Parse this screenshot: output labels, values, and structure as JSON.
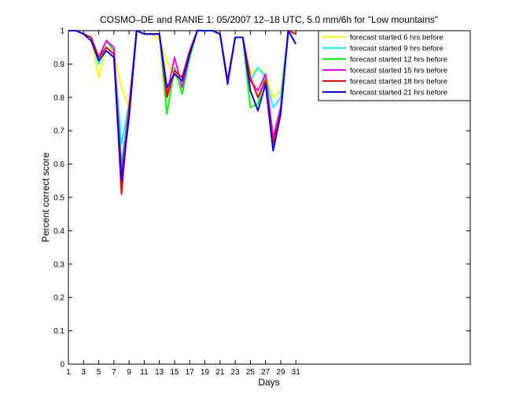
{
  "chart_data": {
    "type": "line",
    "title": "COSMO–DE and RANIE 1: 05/2007 12–18 UTC, 5.0 mm/6h for \"Low mountains\"",
    "xlabel": "Days",
    "ylabel": "Percent correct score",
    "xlim": [
      1,
      54
    ],
    "ylim": [
      0,
      1
    ],
    "x_ticks": [
      1,
      3,
      5,
      7,
      9,
      11,
      13,
      15,
      17,
      19,
      21,
      23,
      25,
      27,
      29,
      31
    ],
    "y_ticks": [
      0,
      0.1,
      0.2,
      0.3,
      0.4,
      0.5,
      0.6,
      0.7,
      0.8,
      0.9,
      1
    ],
    "y_tick_labels": [
      "0",
      "0.1",
      "0.2",
      "0.3",
      "0.4",
      "0.5",
      "0.6",
      "0.7",
      "0.8",
      "0.9",
      "1"
    ],
    "grid": false,
    "legend_position": "top-right",
    "x": [
      1,
      2,
      3,
      4,
      5,
      6,
      7,
      8,
      9,
      10,
      11,
      12,
      13,
      14,
      15,
      16,
      17,
      18,
      19,
      20,
      21,
      22,
      23,
      24,
      25,
      26,
      27,
      28,
      29,
      30,
      31
    ],
    "series": [
      {
        "name": "forecast started 6 hrs before",
        "color": "#ffff00",
        "values": [
          1,
          1,
          0.99,
          0.98,
          0.86,
          0.95,
          0.93,
          0.83,
          0.77,
          1,
          0.99,
          0.99,
          0.97,
          0.91,
          0.86,
          0.86,
          0.93,
          1,
          1,
          1,
          0.99,
          0.85,
          0.98,
          0.98,
          0.87,
          0.89,
          0.87,
          0.8,
          0.82,
          1,
          0.99
        ]
      },
      {
        "name": "forecast started 9 hrs before",
        "color": "#00ffff",
        "values": [
          1,
          1,
          0.99,
          0.98,
          0.9,
          0.95,
          0.93,
          0.66,
          0.78,
          1,
          0.99,
          0.99,
          0.99,
          0.82,
          0.87,
          0.85,
          0.93,
          1,
          1,
          1,
          0.99,
          0.85,
          0.98,
          0.98,
          0.85,
          0.89,
          0.86,
          0.77,
          0.8,
          1,
          0.99
        ]
      },
      {
        "name": "forecast started 12 hrs before",
        "color": "#00ff00",
        "values": [
          1,
          1,
          0.99,
          0.98,
          0.92,
          0.97,
          0.94,
          0.6,
          0.77,
          1,
          0.99,
          0.99,
          0.99,
          0.75,
          0.89,
          0.81,
          0.92,
          1,
          1,
          1,
          0.99,
          0.85,
          0.98,
          0.98,
          0.77,
          0.78,
          0.87,
          0.68,
          0.76,
          1,
          0.99
        ]
      },
      {
        "name": "forecast started 15 hrs before",
        "color": "#ff00ff",
        "values": [
          1,
          1,
          0.99,
          0.98,
          0.92,
          0.97,
          0.95,
          0.57,
          0.77,
          1,
          0.99,
          0.99,
          0.99,
          0.81,
          0.92,
          0.83,
          0.93,
          1,
          1,
          1,
          0.99,
          0.85,
          0.98,
          0.98,
          0.85,
          0.82,
          0.87,
          0.68,
          0.77,
          1,
          0.99
        ]
      },
      {
        "name": "forecast started 18 hrs before",
        "color": "#ff0000",
        "values": [
          1,
          1,
          0.99,
          0.98,
          0.92,
          0.95,
          0.93,
          0.51,
          0.77,
          1,
          0.99,
          0.99,
          0.99,
          0.8,
          0.88,
          0.86,
          0.94,
          1,
          1,
          1,
          0.99,
          0.85,
          0.98,
          0.98,
          0.86,
          0.8,
          0.85,
          0.66,
          0.76,
          1,
          0.99
        ]
      },
      {
        "name": "forecast started 21 hrs before",
        "color": "#0000ff",
        "values": [
          1,
          1,
          0.99,
          0.97,
          0.91,
          0.94,
          0.92,
          0.55,
          0.74,
          1,
          0.99,
          0.99,
          0.99,
          0.83,
          0.87,
          0.85,
          0.93,
          1,
          1,
          1,
          0.99,
          0.84,
          0.98,
          0.98,
          0.82,
          0.76,
          0.84,
          0.64,
          0.75,
          1,
          0.96
        ]
      }
    ]
  }
}
